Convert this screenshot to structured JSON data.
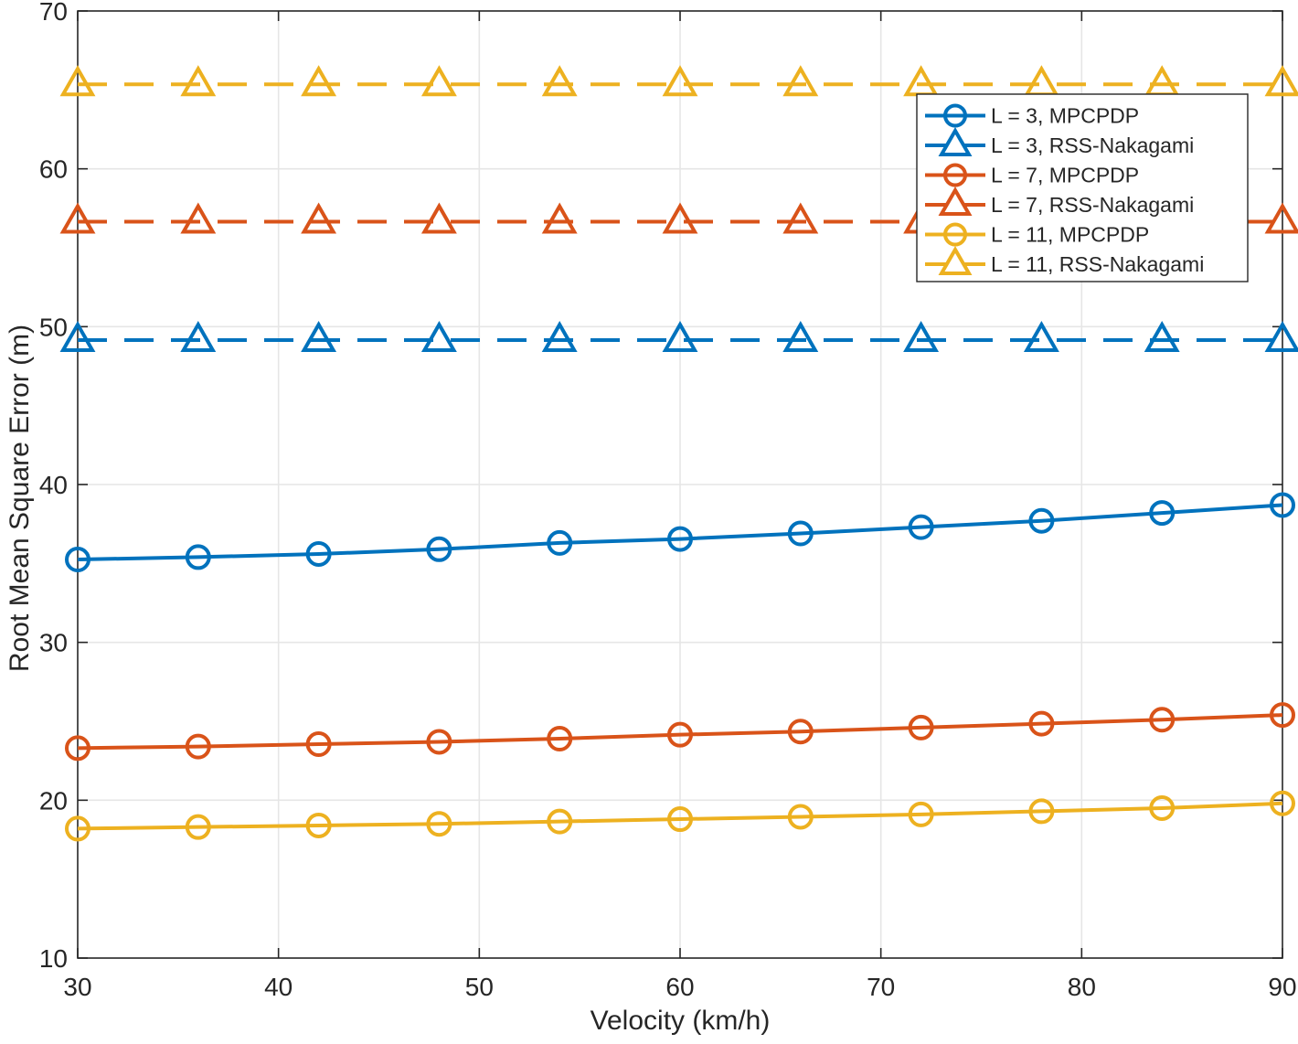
{
  "figure": {
    "background": "#FFFFFF",
    "axis_color": "#262626",
    "grid_color": "#E6E6E6",
    "text_color": "#262626"
  },
  "chart_data": {
    "type": "line",
    "title": "",
    "xlabel": "Velocity (km/h)",
    "ylabel": "Root Mean Square Error (m)",
    "xlim": [
      30,
      90
    ],
    "ylim": [
      10,
      70
    ],
    "xticks": [
      30,
      40,
      50,
      60,
      70,
      80,
      90
    ],
    "yticks": [
      10,
      20,
      30,
      40,
      50,
      60,
      70
    ],
    "grid": true,
    "legend_position": "upper-right-inside",
    "x": [
      30,
      36,
      42,
      48,
      54,
      60,
      66,
      72,
      78,
      84,
      90
    ],
    "series": [
      {
        "name": "L = 3, MPCPDP",
        "color": "#0072BD",
        "line_style": "solid",
        "marker": "circle",
        "values": [
          35.25,
          35.4,
          35.6,
          35.9,
          36.3,
          36.55,
          36.9,
          37.3,
          37.7,
          38.2,
          38.7
        ]
      },
      {
        "name": "L = 3, RSS-Nakagami",
        "color": "#0072BD",
        "line_style": "dashed",
        "marker": "triangle",
        "values": [
          49.15,
          49.15,
          49.15,
          49.15,
          49.15,
          49.15,
          49.15,
          49.15,
          49.15,
          49.15,
          49.15
        ]
      },
      {
        "name": "L = 7, MPCPDP",
        "color": "#D95319",
        "line_style": "solid",
        "marker": "circle",
        "values": [
          23.3,
          23.4,
          23.55,
          23.7,
          23.9,
          24.15,
          24.35,
          24.6,
          24.85,
          25.1,
          25.4
        ]
      },
      {
        "name": "L = 7, RSS-Nakagami",
        "color": "#D95319",
        "line_style": "dashed",
        "marker": "triangle",
        "values": [
          56.65,
          56.65,
          56.65,
          56.65,
          56.65,
          56.65,
          56.65,
          56.65,
          56.65,
          56.65,
          56.65
        ]
      },
      {
        "name": "L = 11, MPCPDP",
        "color": "#EDB120",
        "line_style": "solid",
        "marker": "circle",
        "values": [
          18.2,
          18.3,
          18.4,
          18.5,
          18.65,
          18.8,
          18.95,
          19.1,
          19.3,
          19.5,
          19.8
        ]
      },
      {
        "name": "L = 11, RSS-Nakagami",
        "color": "#EDB120",
        "line_style": "dashed",
        "marker": "triangle",
        "values": [
          65.35,
          65.35,
          65.35,
          65.35,
          65.35,
          65.35,
          65.35,
          65.35,
          65.35,
          65.35,
          65.35
        ]
      }
    ]
  },
  "legend": {
    "items": [
      "L = 3, MPCPDP",
      "L = 3, RSS-Nakagami",
      "L = 7, MPCPDP",
      "L = 7, RSS-Nakagami",
      "L = 11, MPCPDP",
      "L = 11, RSS-Nakagami"
    ]
  }
}
